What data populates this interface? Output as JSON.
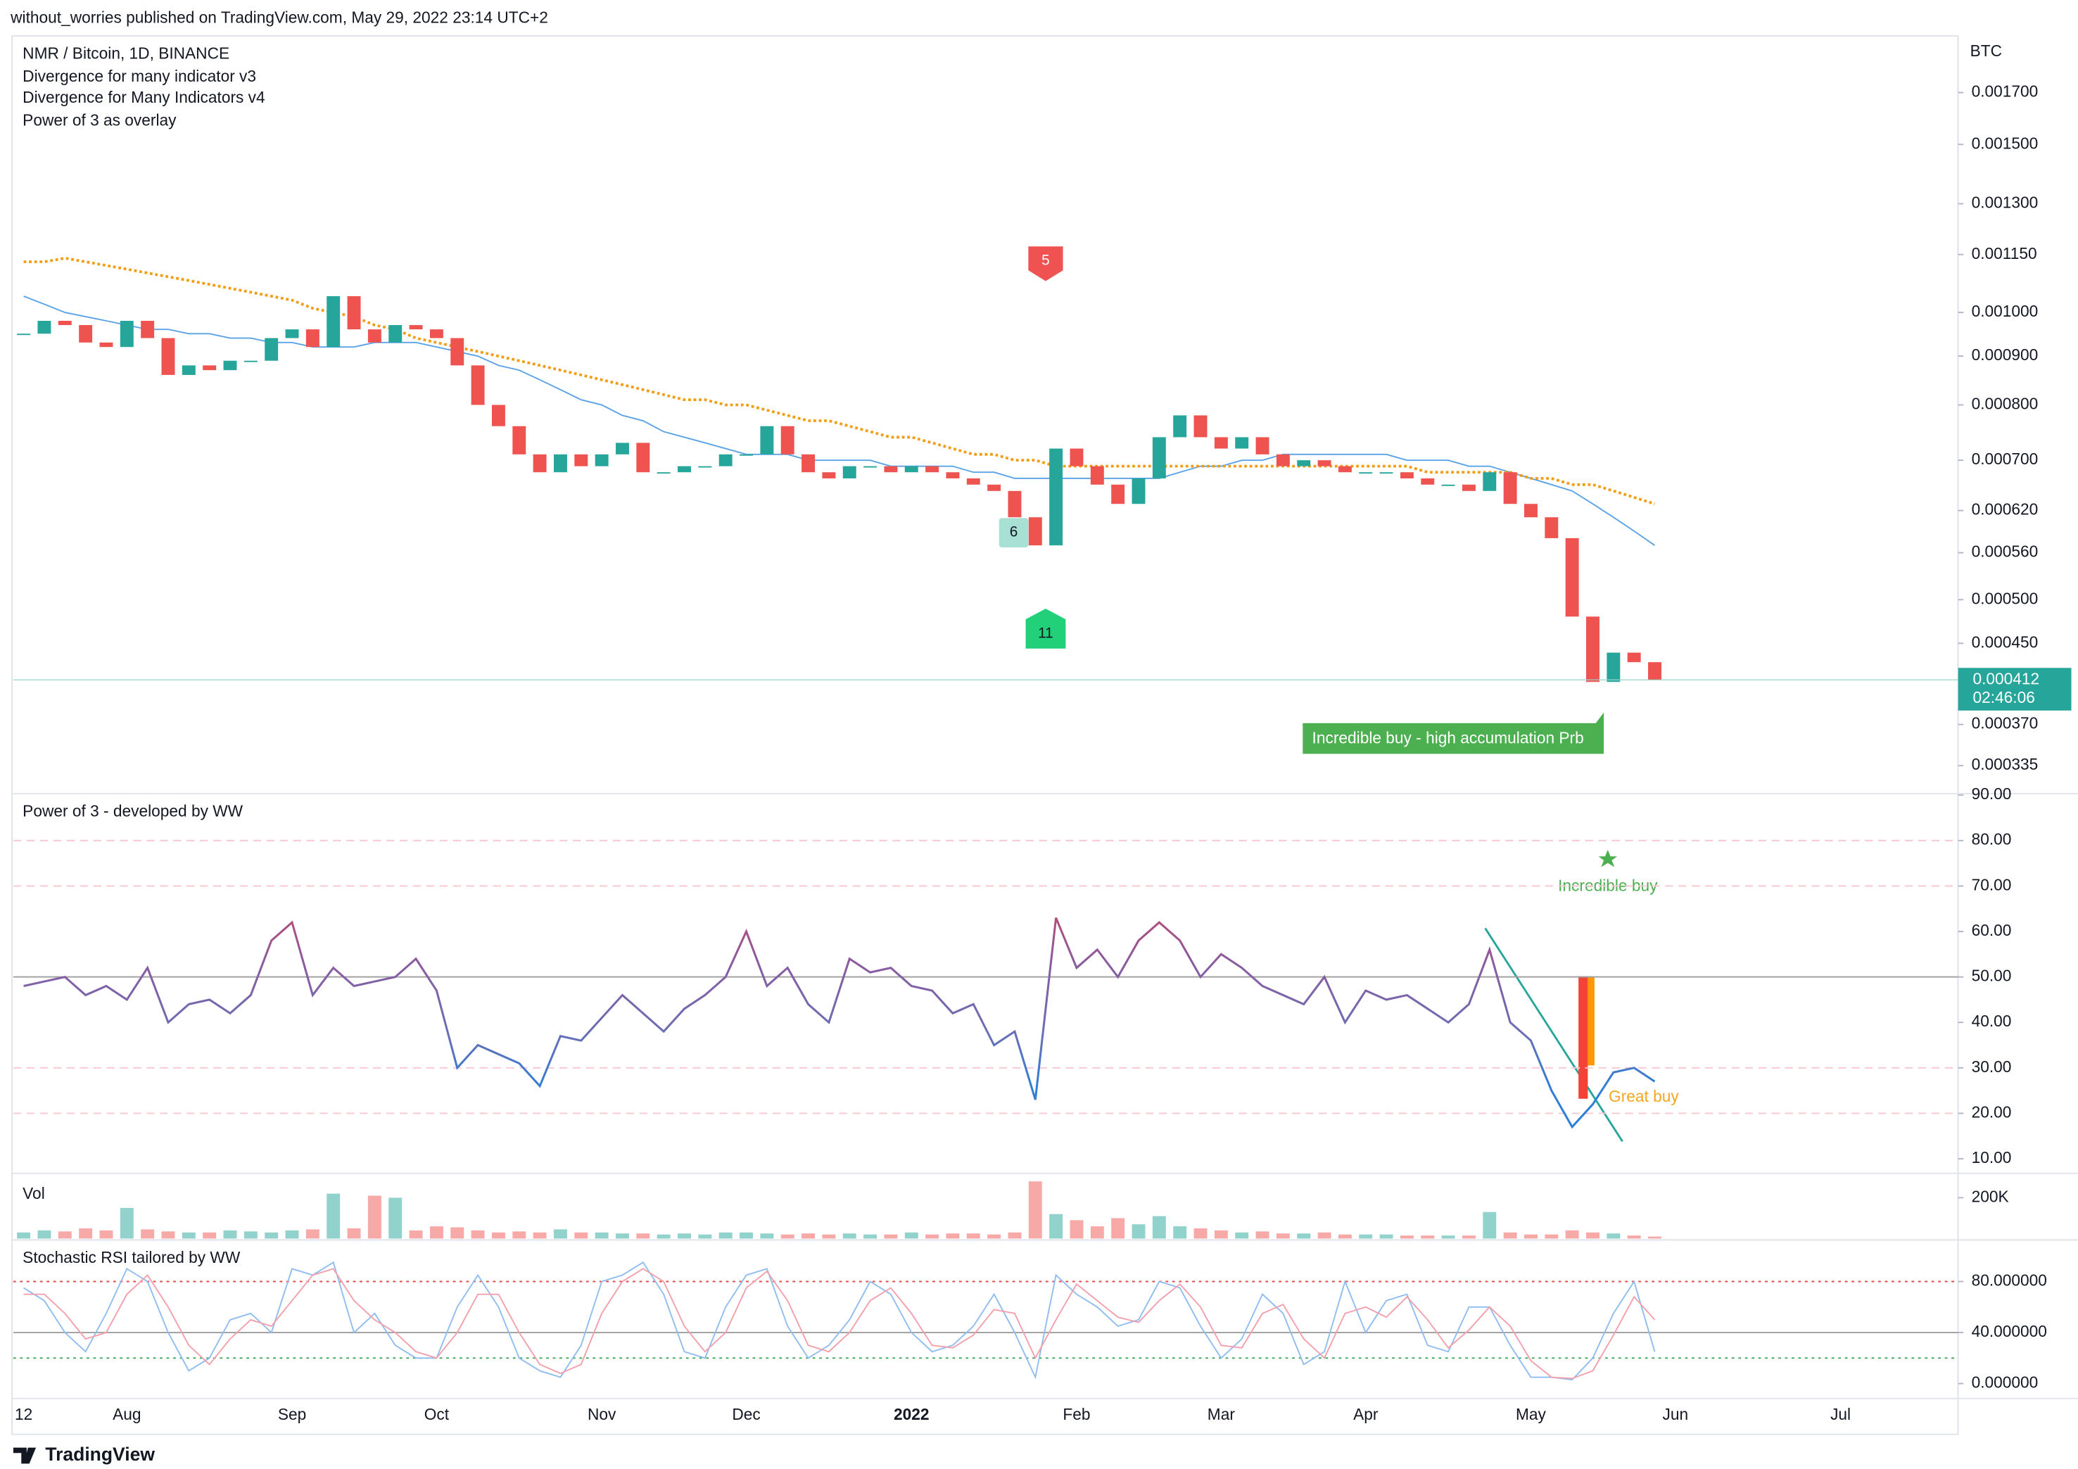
{
  "header": "without_worries published on TradingView.com, May 29, 2022 23:14 UTC+2",
  "footer": "TradingView",
  "chart_data": [
    {
      "type": "candlestick",
      "title": "NMR / Bitcoin, 1D, BINANCE",
      "indicators": [
        "Divergence for many indicator v3",
        "Divergence for Many Indicators v4",
        "Power of 3 as overlay"
      ],
      "axis_label": "BTC",
      "log_scale": true,
      "up_color": "#26a69a",
      "down_color": "#ef5350",
      "categories": [
        "12",
        null,
        null,
        null,
        null,
        "Aug",
        null,
        null,
        null,
        null,
        null,
        null,
        null,
        "Sep",
        null,
        null,
        null,
        null,
        null,
        null,
        "Oct",
        null,
        null,
        null,
        null,
        null,
        null,
        null,
        "Nov",
        null,
        null,
        null,
        null,
        null,
        null,
        "Dec",
        null,
        null,
        null,
        null,
        null,
        null,
        null,
        "2022",
        null,
        null,
        null,
        null,
        null,
        null,
        null,
        "Feb",
        null,
        null,
        null,
        null,
        null,
        null,
        "Mar",
        null,
        null,
        null,
        null,
        null,
        null,
        "Apr",
        null,
        null,
        null,
        null,
        null,
        null,
        null,
        "May",
        null,
        null,
        null,
        null,
        null,
        null,
        "Jun",
        null,
        null,
        null,
        null,
        null,
        null,
        null,
        "Jul",
        null,
        null,
        null,
        null,
        null
      ],
      "series": [
        {
          "color": "#26a69a",
          "values": [
            0.00095,
            0.00098,
            0.00097,
            0.00093,
            0.00092,
            0.00098,
            0.00094,
            0.00086,
            0.00088,
            0.00087,
            0.00089,
            0.00089,
            0.00094,
            0.00096,
            0.00092,
            0.00104,
            0.00096,
            0.00093,
            0.00097,
            0.00096,
            0.00094,
            0.00088,
            0.0008,
            0.00076,
            0.00071,
            0.00068,
            0.00071,
            0.00069,
            0.00071,
            0.00073,
            0.00068,
            0.00068,
            0.00069,
            0.00069,
            0.00071,
            0.00071,
            0.00076,
            0.00071,
            0.00068,
            0.00067,
            0.00069,
            0.00069,
            0.00068,
            0.00069,
            0.00068,
            0.00067,
            0.00066,
            0.00065,
            0.00061,
            0.00057,
            0.00072,
            0.00069,
            0.00066,
            0.00063,
            0.00067,
            0.00074,
            0.00078,
            0.00074,
            0.00072,
            0.00074,
            0.00071,
            0.00069,
            0.0007,
            0.00069,
            0.00068,
            0.00068,
            0.00068,
            0.00067,
            0.00066,
            0.00066,
            0.00065,
            0.00068,
            0.00063,
            0.00061,
            0.00058,
            0.00048,
            0.00041,
            0.00044,
            0.00043,
            0.000412,
            null,
            null,
            null,
            null,
            null,
            null,
            null,
            null,
            null,
            null,
            null,
            null,
            null,
            null
          ]
        },
        {
          "color": "#5ba3e6",
          "values": [
            0.00104,
            0.00102,
            0.001,
            0.00099,
            0.00098,
            0.00097,
            0.00096,
            0.00096,
            0.00095,
            0.00095,
            0.00094,
            0.00094,
            0.00093,
            0.00093,
            0.00092,
            0.00092,
            0.00092,
            0.00093,
            0.00093,
            0.00093,
            0.00092,
            0.00091,
            0.0009,
            0.00088,
            0.00087,
            0.00085,
            0.00083,
            0.00081,
            0.0008,
            0.00078,
            0.00077,
            0.00075,
            0.00074,
            0.00073,
            0.00072,
            0.00071,
            0.00071,
            0.00071,
            0.0007,
            0.0007,
            0.0007,
            0.0007,
            0.00069,
            0.00069,
            0.00069,
            0.00069,
            0.00068,
            0.00068,
            0.00067,
            0.00067,
            0.00067,
            0.00067,
            0.00067,
            0.00067,
            0.00067,
            0.00067,
            0.00068,
            0.00069,
            0.00069,
            0.0007,
            0.0007,
            0.00071,
            0.00071,
            0.00071,
            0.00071,
            0.00071,
            0.00071,
            0.0007,
            0.0007,
            0.0007,
            0.00069,
            0.00069,
            0.00068,
            0.00067,
            0.00066,
            0.00065,
            0.00063,
            0.00061,
            0.00059,
            0.00057,
            null,
            null,
            null,
            null,
            null,
            null,
            null,
            null,
            null,
            null,
            null,
            null,
            null,
            null
          ]
        },
        {
          "color": "#f39c12",
          "values": [
            0.00113,
            0.00113,
            0.00114,
            0.00113,
            0.00112,
            0.00111,
            0.0011,
            0.00109,
            0.00108,
            0.00107,
            0.00106,
            0.00105,
            0.00104,
            0.00103,
            0.00101,
            0.001,
            0.00099,
            0.00097,
            0.00096,
            0.00094,
            0.00093,
            0.00092,
            0.00091,
            0.0009,
            0.00089,
            0.00088,
            0.00087,
            0.00086,
            0.00085,
            0.00084,
            0.00083,
            0.00082,
            0.00081,
            0.00081,
            0.0008,
            0.0008,
            0.00079,
            0.00078,
            0.00077,
            0.00077,
            0.00076,
            0.00075,
            0.00074,
            0.00074,
            0.00073,
            0.00072,
            0.00071,
            0.00071,
            0.0007,
            0.0007,
            0.00069,
            0.00069,
            0.00069,
            0.00069,
            0.00069,
            0.00069,
            0.00069,
            0.00069,
            0.00069,
            0.00069,
            0.00069,
            0.00069,
            0.00069,
            0.00069,
            0.00069,
            0.00069,
            0.00069,
            0.00069,
            0.00068,
            0.00068,
            0.00068,
            0.00068,
            0.00068,
            0.00067,
            0.00067,
            0.00066,
            0.00066,
            0.00065,
            0.00064,
            0.00063,
            null,
            null,
            null,
            null,
            null,
            null,
            null,
            null,
            null,
            null,
            null,
            null,
            null,
            null
          ]
        }
      ],
      "ylim": [
        0.000314,
        0.00193
      ],
      "yticks": [
        {
          "value": 0.0017,
          "label": "0.001700"
        },
        {
          "value": 0.0015,
          "label": "0.001500"
        },
        {
          "value": 0.0013,
          "label": "0.001300"
        },
        {
          "value": 0.00115,
          "label": "0.001150"
        },
        {
          "value": 0.001,
          "label": "0.001000"
        },
        {
          "value": 0.0009,
          "label": "0.000900"
        },
        {
          "value": 0.0008,
          "label": "0.000800"
        },
        {
          "value": 0.0007,
          "label": "0.000700"
        },
        {
          "value": 0.00062,
          "label": "0.000620"
        },
        {
          "value": 0.00056,
          "label": "0.000560"
        },
        {
          "value": 0.0005,
          "label": "0.000500"
        },
        {
          "value": 0.00045,
          "label": "0.000450"
        },
        {
          "value": 0.00037,
          "label": "0.000370"
        },
        {
          "value": 0.000335,
          "label": "0.000335"
        }
      ],
      "last_price": {
        "value": 0.000412,
        "label": "0.000412"
      },
      "countdown": "02:46:06",
      "markers": [
        "5",
        "6",
        "11"
      ],
      "annotation": "Incredible buy - high accumulation Prb"
    },
    {
      "type": "line",
      "title": "Power of 3 - developed by WW",
      "series": [
        {
          "values": [
            48,
            49,
            50,
            46,
            48,
            45,
            52,
            40,
            44,
            45,
            42,
            46,
            58,
            62,
            46,
            52,
            48,
            49,
            50,
            54,
            47,
            30,
            35,
            33,
            31,
            26,
            37,
            36,
            41,
            46,
            42,
            38,
            43,
            46,
            50,
            60,
            48,
            52,
            44,
            40,
            54,
            51,
            52,
            48,
            47,
            42,
            44,
            35,
            38,
            23,
            63,
            52,
            56,
            50,
            58,
            62,
            58,
            50,
            55,
            52,
            48,
            46,
            44,
            50,
            40,
            47,
            45,
            46,
            43,
            40,
            44,
            56,
            40,
            36,
            25,
            17,
            22,
            29,
            30,
            27,
            null,
            null,
            null,
            null,
            null,
            null,
            null,
            null,
            null,
            null,
            null,
            null,
            null,
            null
          ]
        }
      ],
      "ylim": [
        6.8,
        90
      ],
      "yticks": [
        {
          "value": 90,
          "label": "90.00"
        },
        {
          "value": 80,
          "label": "80.00"
        },
        {
          "value": 70,
          "label": "70.00"
        },
        {
          "value": 60,
          "label": "60.00"
        },
        {
          "value": 50,
          "label": "50.00"
        },
        {
          "value": 40,
          "label": "40.00"
        },
        {
          "value": 30,
          "label": "30.00"
        },
        {
          "value": 20,
          "label": "20.00"
        },
        {
          "value": 10,
          "label": "10.00"
        }
      ],
      "levels": [
        {
          "value": 80,
          "color": "#f8c8d0",
          "style": "dashed"
        },
        {
          "value": 70,
          "color": "#f8c8d0",
          "style": "dashed"
        },
        {
          "value": 50,
          "color": "#9e9e9e",
          "style": "solid"
        },
        {
          "value": 30,
          "color": "#f8c8d0",
          "style": "dashed"
        },
        {
          "value": 20,
          "color": "#f8c8d0",
          "style": "dashed"
        }
      ],
      "annotations": [
        "Incredible buy",
        "Great buy"
      ]
    },
    {
      "type": "bar",
      "title": "Vol",
      "up_color": "#26a69a",
      "down_color": "#ef5350",
      "values": [
        30000,
        40000,
        35000,
        50000,
        40000,
        150000,
        45000,
        35000,
        30000,
        30000,
        40000,
        35000,
        30000,
        40000,
        45000,
        220000,
        50000,
        210000,
        200000,
        40000,
        60000,
        55000,
        40000,
        30000,
        35000,
        30000,
        45000,
        30000,
        30000,
        25000,
        25000,
        20000,
        25000,
        20000,
        30000,
        30000,
        25000,
        20000,
        25000,
        20000,
        25000,
        20000,
        20000,
        30000,
        20000,
        25000,
        25000,
        20000,
        30000,
        280000,
        120000,
        90000,
        60000,
        100000,
        70000,
        110000,
        60000,
        50000,
        40000,
        30000,
        35000,
        25000,
        25000,
        30000,
        20000,
        20000,
        20000,
        15000,
        15000,
        15000,
        15000,
        130000,
        30000,
        20000,
        20000,
        40000,
        30000,
        25000,
        15000,
        10000,
        null,
        null,
        null,
        null,
        null,
        null,
        null,
        null,
        null,
        null,
        null,
        null,
        null,
        null
      ],
      "ylim": [
        0,
        313000
      ],
      "yticks": [
        {
          "value": 200000,
          "label": "200K"
        }
      ]
    },
    {
      "type": "line",
      "title": "Stochastic RSI tailored by WW",
      "series": [
        {
          "color": "#8fbdf0",
          "values": [
            75,
            65,
            40,
            25,
            55,
            90,
            80,
            40,
            10,
            20,
            50,
            55,
            40,
            90,
            85,
            95,
            40,
            55,
            30,
            20,
            20,
            60,
            85,
            60,
            20,
            10,
            5,
            30,
            80,
            85,
            95,
            70,
            25,
            20,
            60,
            85,
            90,
            45,
            20,
            30,
            50,
            80,
            70,
            40,
            25,
            30,
            45,
            70,
            40,
            5,
            85,
            70,
            60,
            45,
            50,
            80,
            75,
            45,
            20,
            35,
            70,
            55,
            15,
            25,
            80,
            40,
            65,
            70,
            30,
            25,
            60,
            60,
            30,
            5,
            5,
            3,
            20,
            55,
            80,
            25,
            null,
            null,
            null,
            null,
            null,
            null,
            null,
            null,
            null,
            null,
            null,
            null,
            null,
            null
          ]
        },
        {
          "color": "#f2a0ac",
          "values": [
            70,
            70,
            55,
            35,
            40,
            70,
            85,
            60,
            30,
            15,
            35,
            50,
            45,
            65,
            85,
            90,
            65,
            50,
            40,
            25,
            20,
            40,
            70,
            70,
            40,
            15,
            8,
            15,
            55,
            80,
            90,
            80,
            45,
            25,
            40,
            75,
            88,
            65,
            30,
            25,
            40,
            65,
            75,
            55,
            30,
            28,
            38,
            58,
            55,
            20,
            50,
            78,
            65,
            52,
            48,
            65,
            78,
            60,
            30,
            28,
            55,
            62,
            35,
            20,
            55,
            60,
            52,
            68,
            50,
            28,
            42,
            60,
            45,
            18,
            5,
            4,
            10,
            38,
            68,
            50,
            null,
            null,
            null,
            null,
            null,
            null,
            null,
            null,
            null,
            null,
            null,
            null,
            null,
            null
          ]
        }
      ],
      "ylim": [
        -11.6,
        112.6
      ],
      "yticks": [
        {
          "value": 80,
          "label": "80.000000"
        },
        {
          "value": 40,
          "label": "40.000000"
        },
        {
          "value": 0,
          "label": "0.000000"
        }
      ],
      "levels": [
        {
          "value": 80,
          "color": "#e04848",
          "style": "dotted"
        },
        {
          "value": 40,
          "color": "#9e9e9e",
          "style": "solid"
        },
        {
          "value": 20,
          "color": "#3aa655",
          "style": "dotted"
        }
      ]
    }
  ]
}
